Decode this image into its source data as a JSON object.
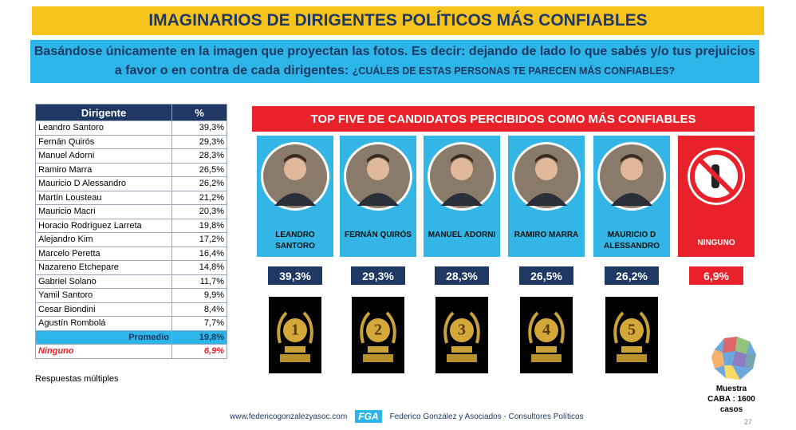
{
  "header": {
    "title": "IMAGINARIOS DE DIRIGENTES POLÍTICOS MÁS CONFIABLES",
    "intro": "Basándose únicamente en la imagen que proyectan las fotos. Es decir: dejando de lado lo que sabés y/o tus prejuicios a favor o en contra de cada dirigentes:",
    "question": "¿CUÁLES DE ESTAS PERSONAS TE PARECEN MÁS CONFIABLES?"
  },
  "table": {
    "columns": [
      "Dirigente",
      "%"
    ],
    "rows": [
      [
        "Leandro Santoro",
        "39,3%"
      ],
      [
        "Fernán Quirós",
        "29,3%"
      ],
      [
        "Manuel Adorni",
        "28,3%"
      ],
      [
        "Ramiro Marra",
        "26,5%"
      ],
      [
        "Mauricio D Alessandro",
        "26,2%"
      ],
      [
        "Martín Lousteau",
        "21,2%"
      ],
      [
        "Mauricio Macri",
        "20,3%"
      ],
      [
        "Horacio Rodríguez Larreta",
        "19,8%"
      ],
      [
        "Alejandro Kim",
        "17,2%"
      ],
      [
        "Marcelo Peretta",
        "16,4%"
      ],
      [
        "Nazareno Etchepare",
        "14,8%"
      ],
      [
        "Gabriel Solano",
        "11,7%"
      ],
      [
        "Yamil Santoro",
        "9,9%"
      ],
      [
        "Cesar Biondini",
        "8,4%"
      ],
      [
        "Agustín Rombolá",
        "7,7%"
      ]
    ],
    "average": [
      "Promedio",
      "19,8%"
    ],
    "none": [
      "Ninguno",
      "6,9%"
    ]
  },
  "note": "Respuestas múltiples",
  "top_five": {
    "title": "TOP FIVE DE CANDIDATOS PERCIBIDOS COMO MÁS CONFIABLES",
    "candidates": [
      {
        "name": "LEANDRO SANTORO",
        "value": "39,3%",
        "rank": "1"
      },
      {
        "name": "FERNÁN QUIRÓS",
        "value": "29,3%",
        "rank": "2"
      },
      {
        "name": "MANUEL ADORNI",
        "value": "28,3%",
        "rank": "3"
      },
      {
        "name": "RAMIRO MARRA",
        "value": "26,5%",
        "rank": "4"
      },
      {
        "name": "MAURICIO D ALESSANDRO",
        "value": "26,2%",
        "rank": "5"
      }
    ],
    "none": {
      "name": "NINGUNO",
      "value": "6,9%"
    }
  },
  "footer": {
    "website": "www.federicogonzalezyasoc.com",
    "logo": "FGA",
    "firm": "Federico González y Asociados - Consultores Políticos",
    "sample": "Muestra CABA : 1600 casos",
    "page": "27"
  }
}
